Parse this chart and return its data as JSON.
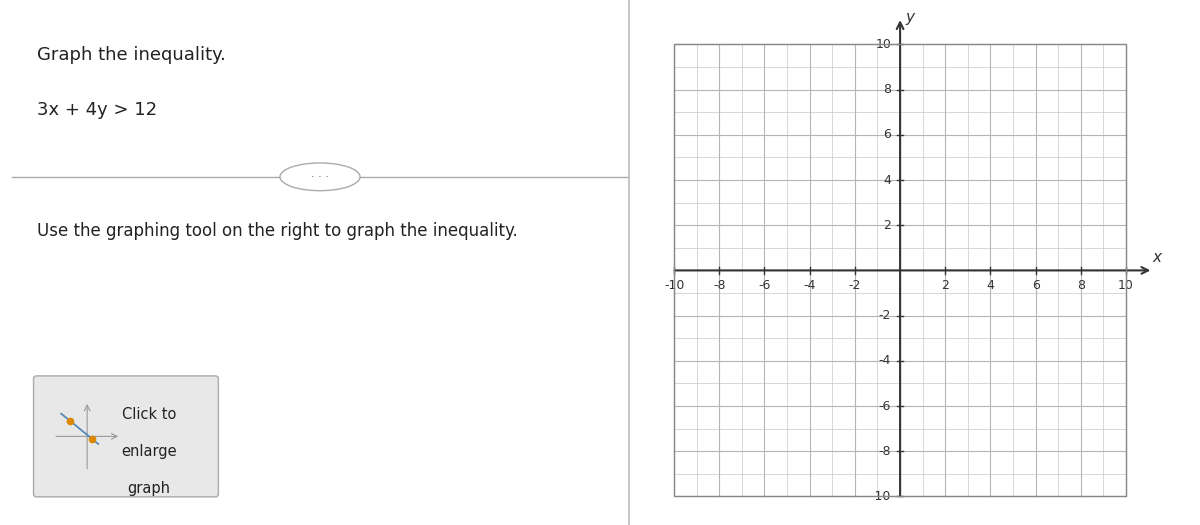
{
  "title_text": "Graph the inequality.",
  "inequality_text": "3x + 4y > 12",
  "instruction_text": "Use the graphing tool on the right to graph the inequality.",
  "button_text": [
    "Click to",
    "enlarge",
    "graph"
  ],
  "axis_min": -10,
  "axis_max": 10,
  "axis_ticks": [
    -10,
    -8,
    -6,
    -4,
    -2,
    2,
    4,
    6,
    8,
    10
  ],
  "grid_color": "#c8c8c8",
  "axis_color": "#333333",
  "background_color": "#ffffff",
  "panel_divider_color": "#aaaaaa",
  "text_color": "#222222",
  "title_fontsize": 13,
  "inequality_fontsize": 13,
  "instruction_fontsize": 12,
  "tick_fontsize": 9
}
